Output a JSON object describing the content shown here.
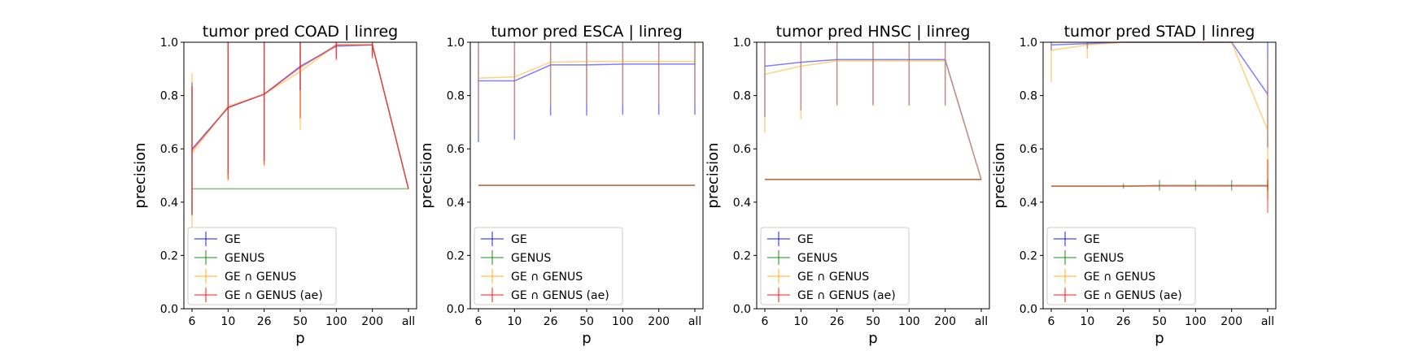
{
  "colors": {
    "GE": "#0000ff",
    "GENUS": "#008000",
    "GE ∩ GENUS": "#ffa500",
    "GE ∩ GENUS (ae)": "#ff0000"
  },
  "chart_data": [
    {
      "type": "line",
      "title": "tumor pred COAD | linreg",
      "xlabel": "p",
      "ylabel": "precision",
      "categories": [
        "6",
        "10",
        "26",
        "50",
        "100",
        "200",
        "all"
      ],
      "ylim": [
        0.0,
        1.0
      ],
      "yticks": [
        "0.0",
        "0.2",
        "0.4",
        "0.6",
        "0.8",
        "1.0"
      ],
      "legend": {
        "position": "lower-left",
        "entries": [
          "GE",
          "GENUS",
          "GE ∩ GENUS",
          "GE ∩ GENUS (ae)"
        ]
      },
      "series": [
        {
          "name": "GE",
          "values": [
            0.6,
            0.755,
            0.805,
            0.91,
            0.985,
            0.99,
            0.45
          ],
          "err": [
            0.25,
            0.25,
            0.25,
            0.09,
            0.05,
            0.04,
            0.0
          ]
        },
        {
          "name": "GENUS",
          "values": [
            0.45,
            0.45,
            0.45,
            0.45,
            0.45,
            0.45,
            0.45
          ],
          "err": [
            0,
            0,
            0,
            0,
            0,
            0,
            0
          ]
        },
        {
          "name": "GE ∩ GENUS",
          "values": [
            0.585,
            0.76,
            0.805,
            0.89,
            0.99,
            0.99,
            0.45
          ],
          "err": [
            0.3,
            0.28,
            0.27,
            0.22,
            0.06,
            0.05,
            0.0
          ]
        },
        {
          "name": "GE ∩ GENUS (ae)",
          "values": [
            0.595,
            0.755,
            0.805,
            0.905,
            0.99,
            0.99,
            0.45
          ],
          "err": [
            0.24,
            0.27,
            0.265,
            0.19,
            0.05,
            0.05,
            0.0
          ]
        }
      ]
    },
    {
      "type": "line",
      "title": "tumor pred ESCA | linreg",
      "xlabel": "p",
      "ylabel": "precision",
      "categories": [
        "6",
        "10",
        "26",
        "50",
        "100",
        "200",
        "all"
      ],
      "ylim": [
        0.0,
        1.0
      ],
      "yticks": [
        "0.0",
        "0.2",
        "0.4",
        "0.6",
        "0.8",
        "1.0"
      ],
      "legend": {
        "position": "lower-left",
        "entries": [
          "GE",
          "GENUS",
          "GE ∩ GENUS",
          "GE ∩ GENUS (ae)"
        ]
      },
      "series": [
        {
          "name": "GE",
          "values": [
            0.855,
            0.855,
            0.915,
            0.915,
            0.918,
            0.918,
            0.918
          ],
          "err": [
            0.23,
            0.22,
            0.19,
            0.19,
            0.19,
            0.19,
            0.19
          ]
        },
        {
          "name": "GENUS",
          "values": [
            0.463,
            0.463,
            0.463,
            0.463,
            0.463,
            0.463,
            0.463
          ],
          "err": [
            0,
            0,
            0,
            0,
            0,
            0,
            0
          ]
        },
        {
          "name": "GE ∩ GENUS",
          "values": [
            0.865,
            0.87,
            0.925,
            0.928,
            0.928,
            0.928,
            0.928
          ],
          "err": [
            0.2,
            0.2,
            0.16,
            0.16,
            0.16,
            0.16,
            0.16
          ]
        },
        {
          "name": "GE ∩ GENUS (ae)",
          "values": [
            0.463,
            0.463,
            0.463,
            0.463,
            0.463,
            0.463,
            0.463
          ],
          "err": [
            0,
            0,
            0,
            0,
            0,
            0,
            0
          ]
        }
      ]
    },
    {
      "type": "line",
      "title": "tumor pred HNSC | linreg",
      "xlabel": "p",
      "ylabel": "precision",
      "categories": [
        "6",
        "10",
        "26",
        "50",
        "100",
        "200",
        "all"
      ],
      "ylim": [
        0.0,
        1.0
      ],
      "yticks": [
        "0.0",
        "0.2",
        "0.4",
        "0.6",
        "0.8",
        "1.0"
      ],
      "legend": {
        "position": "lower-left",
        "entries": [
          "GE",
          "GENUS",
          "GE ∩ GENUS",
          "GE ∩ GENUS (ae)"
        ]
      },
      "series": [
        {
          "name": "GE",
          "values": [
            0.91,
            0.925,
            0.935,
            0.935,
            0.935,
            0.935,
            0.485
          ],
          "err": [
            0.19,
            0.18,
            0.17,
            0.17,
            0.17,
            0.17,
            0.0
          ]
        },
        {
          "name": "GENUS",
          "values": [
            0.485,
            0.485,
            0.485,
            0.485,
            0.485,
            0.485,
            0.485
          ],
          "err": [
            0,
            0,
            0,
            0,
            0,
            0,
            0
          ]
        },
        {
          "name": "GE ∩ GENUS",
          "values": [
            0.88,
            0.91,
            0.93,
            0.93,
            0.93,
            0.93,
            0.485
          ],
          "err": [
            0.22,
            0.2,
            0.17,
            0.17,
            0.17,
            0.17,
            0.0
          ]
        },
        {
          "name": "GE ∩ GENUS (ae)",
          "values": [
            0.485,
            0.485,
            0.485,
            0.485,
            0.485,
            0.485,
            0.485
          ],
          "err": [
            0,
            0,
            0,
            0,
            0,
            0,
            0
          ]
        }
      ]
    },
    {
      "type": "line",
      "title": "tumor pred STAD | linreg",
      "xlabel": "p",
      "ylabel": "precision",
      "categories": [
        "6",
        "10",
        "26",
        "50",
        "100",
        "200",
        "all"
      ],
      "ylim": [
        0.0,
        1.0
      ],
      "yticks": [
        "0.0",
        "0.2",
        "0.4",
        "0.6",
        "0.8",
        "1.0"
      ],
      "legend": {
        "position": "lower-left",
        "entries": [
          "GE",
          "GENUS",
          "GE ∩ GENUS",
          "GE ∩ GENUS (ae)"
        ]
      },
      "series": [
        {
          "name": "GE",
          "values": [
            0.99,
            0.995,
            1.0,
            1.0,
            1.0,
            1.0,
            0.805
          ],
          "err": [
            0.02,
            0.02,
            0,
            0,
            0,
            0,
            0.2
          ]
        },
        {
          "name": "GENUS",
          "values": [
            0.46,
            0.46,
            0.46,
            0.463,
            0.463,
            0.463,
            0.463
          ],
          "err": [
            0,
            0,
            0.01,
            0.02,
            0.02,
            0.02,
            0.02
          ]
        },
        {
          "name": "GE ∩ GENUS",
          "values": [
            0.97,
            0.99,
            1.0,
            1.0,
            1.0,
            1.0,
            0.67
          ],
          "err": [
            0.12,
            0.05,
            0,
            0,
            0,
            0,
            0.26
          ]
        },
        {
          "name": "GE ∩ GENUS (ae)",
          "values": [
            0.46,
            0.46,
            0.46,
            0.46,
            0.46,
            0.46,
            0.46
          ],
          "err": [
            0,
            0,
            0,
            0,
            0,
            0,
            0.1
          ]
        }
      ]
    }
  ]
}
